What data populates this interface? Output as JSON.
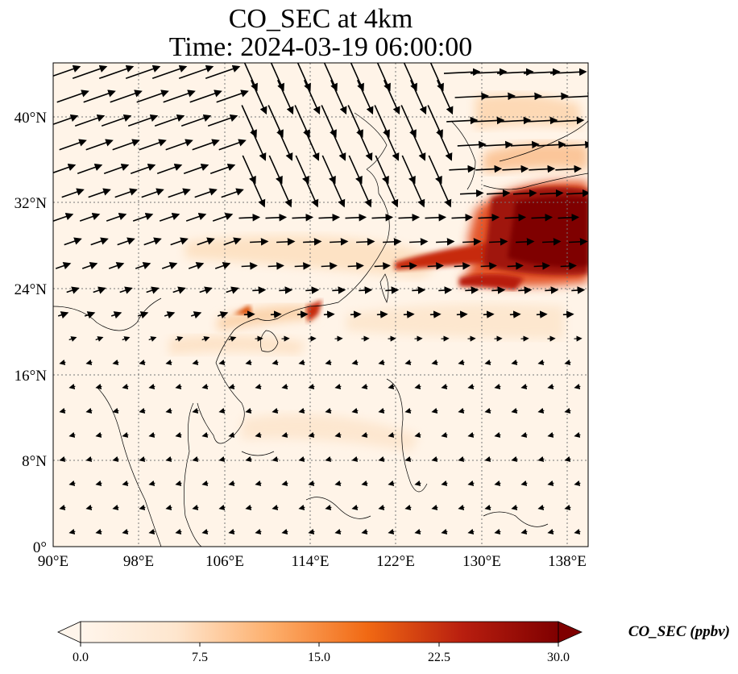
{
  "title": {
    "line1": "CO_SEC at 4km",
    "line2": "Time: 2024-03-19 06:00:00"
  },
  "map": {
    "lon_range": [
      90,
      140
    ],
    "lat_range": [
      0,
      45
    ],
    "lon_ticks": [
      "90°E",
      "98°E",
      "106°E",
      "114°E",
      "122°E",
      "130°E",
      "138°E"
    ],
    "lat_ticks": [
      "0°",
      "8°N",
      "16°N",
      "24°N",
      "32°N",
      "40°N"
    ],
    "gridlines": "dotted",
    "wind_vectors": "black arrows"
  },
  "colorbar": {
    "label": "CO_SEC (ppbv)",
    "ticks": [
      "0.0",
      "7.5",
      "15.0",
      "22.5",
      "30.0"
    ],
    "range": [
      0,
      30
    ],
    "extend": "both",
    "colormap": [
      "#fff5eb",
      "#fdd0a2",
      "#fd8d3c",
      "#d94801",
      "#a50f15",
      "#7f0000"
    ]
  }
}
